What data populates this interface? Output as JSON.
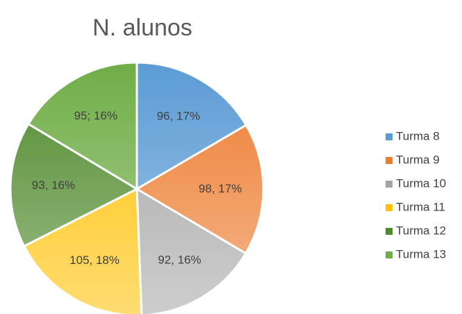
{
  "chart_data": {
    "type": "pie",
    "title": "N. alunos",
    "categories": [
      "Turma 8",
      "Turma 9",
      "Turma 10",
      "Turma 11",
      "Turma 12",
      "Turma 13"
    ],
    "values": [
      96,
      98,
      92,
      105,
      93,
      95
    ],
    "value_labels": [
      "96, 17%",
      "98, 17%",
      "92, 16%",
      "105, 18%",
      "93, 16%",
      "95; 16%"
    ],
    "colors": [
      "#5b9bd5",
      "#ed7d31",
      "#a5a5a5",
      "#ffc000",
      "#4f8a2c",
      "#70ad47"
    ],
    "legend": "right"
  }
}
